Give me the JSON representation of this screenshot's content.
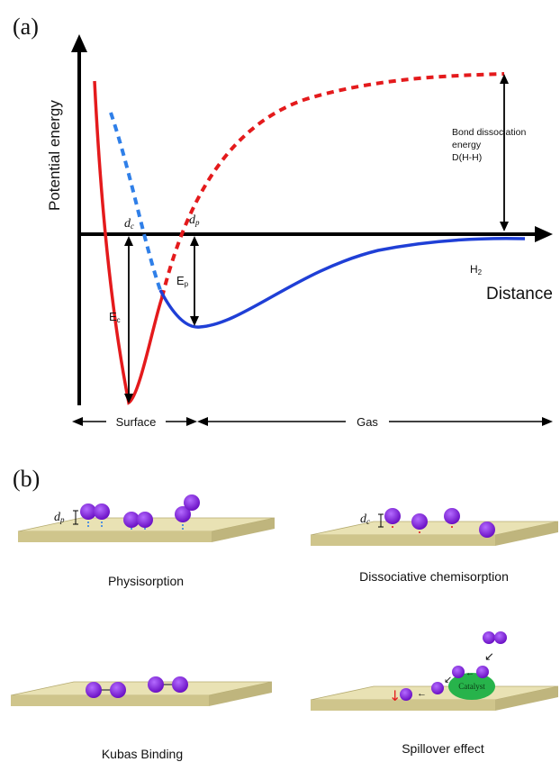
{
  "panel_a": {
    "label": "(a)",
    "y_axis": "Potential energy",
    "x_axis": "Distance",
    "bond_label": [
      "Bond dissociation",
      "energy",
      "D(H-H)"
    ],
    "dc": "d",
    "dc_sub": "c",
    "dp": "d",
    "dp_sub": "p",
    "ec": "E",
    "ec_sub": "c",
    "ep": "E",
    "ep_sub": "p",
    "h2": "H",
    "h2_sub": "2",
    "surface": "Surface",
    "gas": "Gas",
    "colors": {
      "chemisorption": "#e41a1c",
      "physisorption": "#1f3fd6",
      "dashed_blue": "#2f7fe8"
    }
  },
  "panel_b": {
    "label": "(b)",
    "physisorption": "Physisorption",
    "dissociative": "Dissociative chemisorption",
    "kubas": "Kubas Binding",
    "spillover": "Spillover effect",
    "catalyst": "Catalyst",
    "dp": "d",
    "dp_sub": "p",
    "dc": "d",
    "dc_sub": "c",
    "colors": {
      "plate_top": "#e9e2b4",
      "plate_side": "#bfb57d",
      "atom": "#8a1fe0",
      "catalyst": "#27b34b"
    }
  }
}
